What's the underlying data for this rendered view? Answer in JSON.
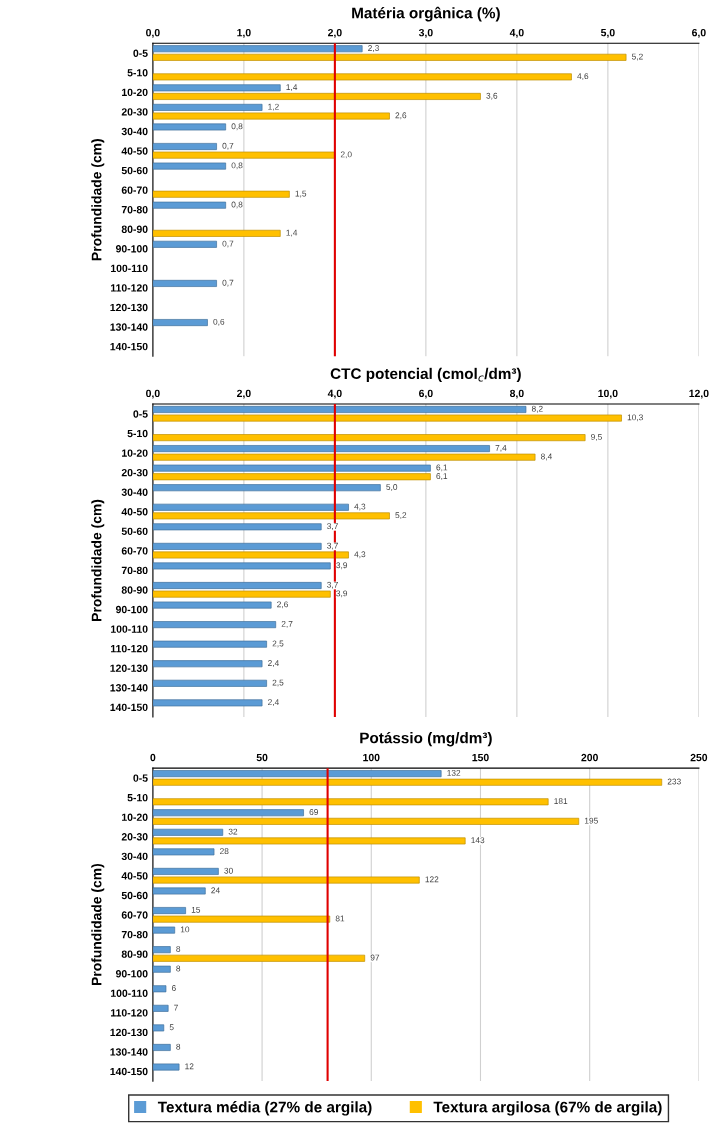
{
  "chart_data": [
    {
      "type": "bar",
      "orientation": "horizontal",
      "title": "Matéria orgânica (%)",
      "ylabel": "Profundidade (cm)",
      "categories": [
        "0-5",
        "5-10",
        "10-20",
        "20-30",
        "30-40",
        "40-50",
        "50-60",
        "60-70",
        "70-80",
        "80-90",
        "90-100",
        "100-110",
        "110-120",
        "120-130",
        "130-140",
        "140-150"
      ],
      "series": [
        {
          "color": "#5b9bd5",
          "values": [
            2.3,
            null,
            1.4,
            1.2,
            0.8,
            0.7,
            0.8,
            null,
            0.8,
            null,
            0.7,
            null,
            0.7,
            null,
            0.6,
            null
          ],
          "value_labels": [
            "2,3",
            null,
            "1,4",
            "1,2",
            "0,8",
            "0,7",
            "0,8",
            null,
            "0,8",
            null,
            "0,7",
            null,
            "0,7",
            null,
            "0,6",
            null
          ]
        },
        {
          "color": "#ffc000",
          "values": [
            5.2,
            4.6,
            3.6,
            2.6,
            null,
            2.0,
            null,
            1.5,
            null,
            1.4,
            null,
            null,
            null,
            null,
            null,
            null
          ],
          "value_labels": [
            "5,2",
            "4,6",
            "3,6",
            "2,6",
            null,
            "2,0",
            null,
            "1,5",
            null,
            "1,4",
            null,
            null,
            null,
            null,
            null,
            null
          ]
        }
      ],
      "xlim": [
        0,
        6
      ],
      "xticks": [
        {
          "value": 0,
          "label": "0,0"
        },
        {
          "value": 1,
          "label": "1,0"
        },
        {
          "value": 2,
          "label": "2,0"
        },
        {
          "value": 3,
          "label": "3,0"
        },
        {
          "value": 4,
          "label": "4,0"
        },
        {
          "value": 5,
          "label": "5,0"
        },
        {
          "value": 6,
          "label": "6,0"
        }
      ],
      "ref_lines": [
        {
          "axis": "x",
          "value": 2.0,
          "label": null,
          "color": "#e00000"
        }
      ],
      "grid": "x",
      "legend": false
    },
    {
      "type": "bar",
      "orientation": "horizontal",
      "title": "CTC potencial (cmol$_{c}$/dm³)",
      "ylabel": "Profundidade (cm)",
      "categories": [
        "0-5",
        "5-10",
        "10-20",
        "20-30",
        "30-40",
        "40-50",
        "50-60",
        "60-70",
        "70-80",
        "80-90",
        "90-100",
        "100-110",
        "110-120",
        "120-130",
        "130-140",
        "140-150"
      ],
      "series": [
        {
          "color": "#5b9bd5",
          "values": [
            8.2,
            null,
            7.4,
            6.1,
            5.0,
            4.3,
            3.7,
            3.7,
            3.9,
            3.7,
            2.6,
            2.7,
            2.5,
            2.4,
            2.5,
            2.4
          ],
          "value_labels": [
            "8,2",
            null,
            "7,4",
            "6,1",
            "5,0",
            "4,3",
            "3,7",
            "3,7",
            "3,9",
            "3,7",
            "2,6",
            "2,7",
            "2,5",
            "2,4",
            "2,5",
            "2,4"
          ]
        },
        {
          "color": "#ffc000",
          "values": [
            10.3,
            9.5,
            8.4,
            6.1,
            null,
            5.2,
            null,
            4.3,
            null,
            3.9,
            null,
            null,
            null,
            null,
            null,
            null
          ],
          "value_labels": [
            "10,3",
            "9,5",
            "8,4",
            "6,1",
            null,
            "5,2",
            null,
            "4,3",
            null,
            "3,9",
            null,
            null,
            null,
            null,
            null,
            null
          ]
        }
      ],
      "xlim": [
        0,
        12
      ],
      "xticks": [
        {
          "value": 0,
          "label": "0,0"
        },
        {
          "value": 2,
          "label": "2,0"
        },
        {
          "value": 4,
          "label": "4,0"
        },
        {
          "value": 6,
          "label": "6,0"
        },
        {
          "value": 8,
          "label": "8,0"
        },
        {
          "value": 10,
          "label": "10,0"
        },
        {
          "value": 12,
          "label": "12,0"
        }
      ],
      "ref_lines": [
        {
          "axis": "x",
          "value": 4.0,
          "label": null,
          "color": "#e00000"
        }
      ],
      "grid": "x",
      "legend": false
    },
    {
      "type": "bar",
      "orientation": "horizontal",
      "title": "Potássio (mg/dm³)",
      "ylabel": "Profundidade (cm)",
      "categories": [
        "0-5",
        "5-10",
        "10-20",
        "20-30",
        "30-40",
        "40-50",
        "50-60",
        "60-70",
        "70-80",
        "80-90",
        "90-100",
        "100-110",
        "110-120",
        "120-130",
        "130-140",
        "140-150"
      ],
      "series": [
        {
          "name": "Textura média (27% de argila)",
          "color": "#5b9bd5",
          "values": [
            132,
            null,
            69,
            32,
            28,
            30,
            24,
            15,
            10,
            8,
            8,
            6,
            7,
            5,
            8,
            12
          ]
        },
        {
          "name": "Textura argilosa (67% de argila)",
          "color": "#ffc000",
          "values": [
            233,
            181,
            195,
            143,
            null,
            122,
            null,
            81,
            null,
            97,
            null,
            null,
            null,
            null,
            null,
            null
          ]
        }
      ],
      "data_labels": true,
      "xlim": [
        0,
        250
      ],
      "xticks": [
        0,
        50,
        100,
        150,
        200,
        250
      ],
      "ref_lines": [
        {
          "axis": "x",
          "value": 80,
          "label": null,
          "color": "#e00000"
        }
      ],
      "grid": "x",
      "legend": "bottom"
    }
  ]
}
